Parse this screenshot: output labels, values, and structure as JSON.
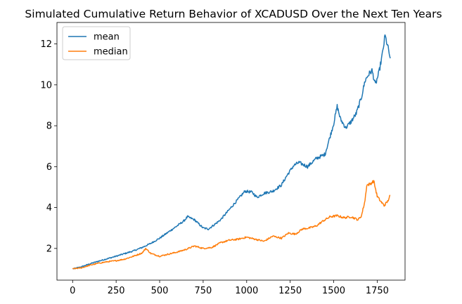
{
  "chart_data": {
    "type": "line",
    "title": "Simulated Cumulative Return Behavior of XCADUSD Over the Next Ten Years",
    "xlabel": "",
    "ylabel": "",
    "xlim": [
      -90,
      1910
    ],
    "ylim": [
      0.45,
      13.05
    ],
    "xticks": [
      0,
      250,
      500,
      750,
      1000,
      1250,
      1500,
      1750
    ],
    "yticks": [
      2,
      4,
      6,
      8,
      10,
      12
    ],
    "grid": false,
    "legend_position": "top-left",
    "series": [
      {
        "name": "mean",
        "color": "#1f77b4",
        "points": [
          [
            0,
            1.0
          ],
          [
            50,
            1.1
          ],
          [
            100,
            1.25
          ],
          [
            150,
            1.38
          ],
          [
            200,
            1.5
          ],
          [
            250,
            1.62
          ],
          [
            300,
            1.75
          ],
          [
            350,
            1.88
          ],
          [
            400,
            2.05
          ],
          [
            450,
            2.25
          ],
          [
            500,
            2.5
          ],
          [
            550,
            2.8
          ],
          [
            600,
            3.1
          ],
          [
            640,
            3.35
          ],
          [
            660,
            3.55
          ],
          [
            700,
            3.4
          ],
          [
            750,
            3.0
          ],
          [
            780,
            2.95
          ],
          [
            820,
            3.2
          ],
          [
            850,
            3.4
          ],
          [
            900,
            3.9
          ],
          [
            950,
            4.4
          ],
          [
            990,
            4.8
          ],
          [
            1030,
            4.75
          ],
          [
            1060,
            4.5
          ],
          [
            1100,
            4.7
          ],
          [
            1150,
            4.8
          ],
          [
            1200,
            5.1
          ],
          [
            1230,
            5.55
          ],
          [
            1270,
            6.05
          ],
          [
            1300,
            6.2
          ],
          [
            1350,
            6.0
          ],
          [
            1400,
            6.4
          ],
          [
            1450,
            6.6
          ],
          [
            1480,
            7.5
          ],
          [
            1500,
            8.1
          ],
          [
            1520,
            8.95
          ],
          [
            1540,
            8.3
          ],
          [
            1570,
            7.9
          ],
          [
            1600,
            8.2
          ],
          [
            1630,
            8.6
          ],
          [
            1660,
            9.4
          ],
          [
            1680,
            10.2
          ],
          [
            1700,
            10.5
          ],
          [
            1720,
            10.7
          ],
          [
            1740,
            10.0
          ],
          [
            1760,
            10.6
          ],
          [
            1780,
            11.5
          ],
          [
            1795,
            12.4
          ],
          [
            1810,
            11.9
          ],
          [
            1825,
            11.3
          ]
        ]
      },
      {
        "name": "median",
        "color": "#ff7f0e",
        "points": [
          [
            0,
            1.0
          ],
          [
            50,
            1.05
          ],
          [
            100,
            1.18
          ],
          [
            150,
            1.28
          ],
          [
            200,
            1.35
          ],
          [
            250,
            1.4
          ],
          [
            300,
            1.48
          ],
          [
            350,
            1.62
          ],
          [
            400,
            1.78
          ],
          [
            420,
            2.0
          ],
          [
            450,
            1.75
          ],
          [
            500,
            1.62
          ],
          [
            550,
            1.72
          ],
          [
            600,
            1.82
          ],
          [
            650,
            1.95
          ],
          [
            700,
            2.12
          ],
          [
            750,
            2.0
          ],
          [
            800,
            2.05
          ],
          [
            850,
            2.28
          ],
          [
            900,
            2.4
          ],
          [
            950,
            2.45
          ],
          [
            1000,
            2.55
          ],
          [
            1050,
            2.45
          ],
          [
            1100,
            2.35
          ],
          [
            1150,
            2.6
          ],
          [
            1200,
            2.5
          ],
          [
            1240,
            2.75
          ],
          [
            1280,
            2.7
          ],
          [
            1320,
            2.95
          ],
          [
            1360,
            3.0
          ],
          [
            1400,
            3.1
          ],
          [
            1440,
            3.35
          ],
          [
            1480,
            3.55
          ],
          [
            1520,
            3.6
          ],
          [
            1560,
            3.5
          ],
          [
            1600,
            3.55
          ],
          [
            1640,
            3.4
          ],
          [
            1660,
            3.6
          ],
          [
            1680,
            4.35
          ],
          [
            1690,
            5.1
          ],
          [
            1710,
            5.15
          ],
          [
            1730,
            5.3
          ],
          [
            1750,
            4.55
          ],
          [
            1770,
            4.3
          ],
          [
            1790,
            4.1
          ],
          [
            1810,
            4.3
          ],
          [
            1825,
            4.6
          ]
        ]
      }
    ]
  }
}
